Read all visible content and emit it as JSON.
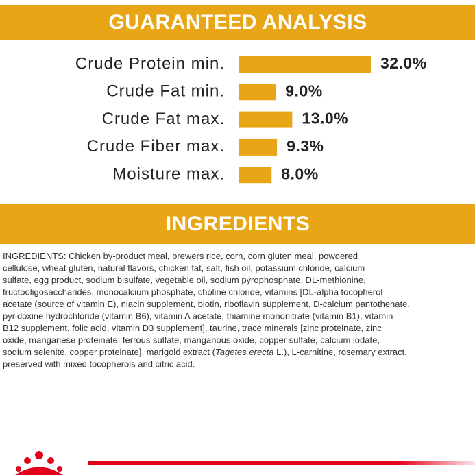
{
  "chart_data": {
    "type": "bar",
    "title": "GUARANTEED ANALYSIS",
    "categories": [
      "Crude Protein min.",
      "Crude Fat min.",
      "Crude Fat max.",
      "Crude Fiber max.",
      "Moisture max."
    ],
    "values": [
      32.0,
      9.0,
      13.0,
      9.3,
      8.0
    ],
    "value_labels": [
      "32.0%",
      "9.0%",
      "13.0%",
      "9.3%",
      "8.0%"
    ],
    "color": "#e8a617"
  },
  "ingredients": {
    "title": "INGREDIENTS",
    "lines": [
      "INGREDIENTS: Chicken by-product meal, brewers rice, corn, corn gluten meal, powdered",
      "cellulose, wheat gluten, natural flavors, chicken fat, salt, fish oil, potassium chloride, calcium",
      "sulfate, egg product, sodium bisulfate, vegetable oil, sodium pyrophosphate, DL-methionine,",
      "fructooligosaccharides, monocalcium phosphate, choline chloride, vitamins [DL-alpha tocopherol",
      "acetate (source of vitamin E), niacin supplement, biotin, riboflavin supplement, D-calcium pantothenate,",
      "pyridoxine hydrochloride (vitamin B6), vitamin A acetate, thiamine mononitrate (vitamin B1), vitamin",
      "B12 supplement, folic acid, vitamin D3 supplement], taurine, trace minerals [zinc proteinate, zinc",
      "oxide, manganese proteinate, ferrous sulfate, manganous oxide, copper sulfate, calcium iodate,",
      {
        "before": "sodium selenite, copper proteinate], marigold extract (",
        "italic": "Tagetes erecta",
        "after": " L.), L-carnitine, rosemary extract,"
      },
      "preserved with mixed tocopherols and citric acid."
    ]
  }
}
